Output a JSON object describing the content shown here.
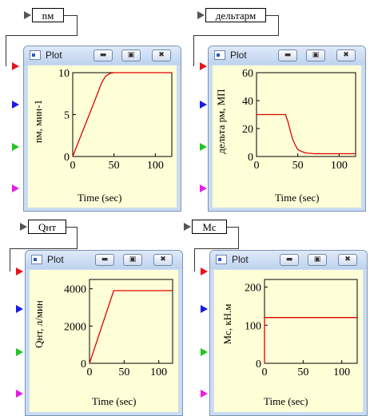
{
  "colors": {
    "trace": "#e00000",
    "plot_bg": "#ffffd7",
    "port_red": "#e8141e",
    "port_blue": "#1a1ae6",
    "port_green": "#22c422",
    "port_magenta": "#e61ee6"
  },
  "signals": [
    {
      "label": "nм"
    },
    {
      "label": "дельтарм"
    },
    {
      "label": "Qнт"
    },
    {
      "label": "Mc"
    }
  ],
  "windows": [
    {
      "title": "Plot",
      "minimize_icon": "minimize-icon",
      "maximize_icon": "maximize-icon",
      "close_icon": "close-icon"
    },
    {
      "title": "Plot"
    },
    {
      "title": "Plot"
    },
    {
      "title": "Plot"
    }
  ],
  "plots": [
    {
      "ylabel": "nм, мин-1",
      "xlabel": "Time (sec)"
    },
    {
      "ylabel": "дельта рм, МП",
      "xlabel": "Time (sec)"
    },
    {
      "ylabel": "Qнт, л/мин",
      "xlabel": "Time (sec)"
    },
    {
      "ylabel": "Mc, кН.м",
      "xlabel": "Time (sec)"
    }
  ],
  "chart_data": [
    {
      "type": "line",
      "xlabel": "Time (sec)",
      "ylabel": "nм, мин-1",
      "xlim": [
        0,
        120
      ],
      "ylim": [
        0,
        10
      ],
      "xticks": [
        0,
        50,
        100
      ],
      "yticks": [
        0,
        5,
        10
      ],
      "series": [
        {
          "x": [
            0,
            10,
            20,
            30,
            35,
            40,
            45,
            50,
            60,
            120
          ],
          "y": [
            0,
            2.5,
            5,
            7.5,
            8.8,
            9.6,
            9.9,
            10,
            10,
            10
          ]
        }
      ]
    },
    {
      "type": "line",
      "xlabel": "Time (sec)",
      "ylabel": "дельта рм, МП",
      "xlim": [
        0,
        120
      ],
      "ylim": [
        0,
        60
      ],
      "xticks": [
        0,
        50,
        100
      ],
      "yticks": [
        0,
        20,
        40,
        60
      ],
      "series": [
        {
          "x": [
            0,
            35,
            38,
            41,
            44,
            47,
            50,
            55,
            60,
            70,
            120
          ],
          "y": [
            30,
            30,
            25,
            18,
            12,
            8,
            5,
            3.5,
            2.5,
            2,
            2
          ]
        }
      ]
    },
    {
      "type": "line",
      "xlabel": "Time (sec)",
      "ylabel": "Qнт, л/мин",
      "xlim": [
        0,
        120
      ],
      "ylim": [
        0,
        4500
      ],
      "xticks": [
        0,
        50,
        100
      ],
      "yticks": [
        0,
        2000,
        4000
      ],
      "series": [
        {
          "x": [
            0,
            35,
            120
          ],
          "y": [
            0,
            3900,
            3900
          ]
        }
      ]
    },
    {
      "type": "line",
      "xlabel": "Time (sec)",
      "ylabel": "Mc, кН.м",
      "xlim": [
        0,
        120
      ],
      "ylim": [
        0,
        220
      ],
      "xticks": [
        0,
        50,
        100
      ],
      "yticks": [
        0,
        100,
        200
      ],
      "series": [
        {
          "x": [
            0,
            0,
            120
          ],
          "y": [
            0,
            120,
            120
          ]
        }
      ]
    }
  ]
}
